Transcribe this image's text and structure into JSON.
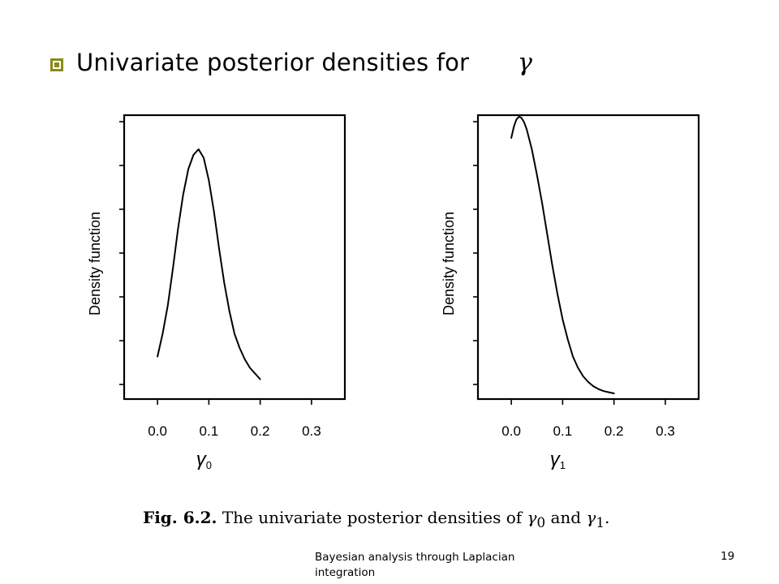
{
  "slide": {
    "title": "Univariate posterior densities for",
    "title_symbol": "γ",
    "caption_prefix": "Fig. 6.2.",
    "caption_text": "The univariate posterior densities of",
    "caption_sym0": "γ",
    "caption_sub0": "0",
    "caption_and": "and",
    "caption_sym1": "γ",
    "caption_sub1": "1",
    "caption_end": ".",
    "footer_text": "Bayesian analysis through Laplacian integration",
    "page_number": "19",
    "bullet_color": "#8a8a1a"
  },
  "chart_data": [
    {
      "type": "line",
      "ylabel": "Density function",
      "xlabel_symbol": "γ",
      "xlabel_subscript": "0",
      "x_ticks": [
        "0.0",
        "0.1",
        "0.2",
        "0.3"
      ],
      "xlim": [
        -0.065,
        0.365
      ],
      "y_ticks_count": 7,
      "y_tick_labels": [],
      "ylim": [
        0,
        1
      ],
      "series": [
        {
          "x": [
            0.0,
            0.01,
            0.02,
            0.03,
            0.04,
            0.05,
            0.06,
            0.07,
            0.08,
            0.09,
            0.1,
            0.11,
            0.12,
            0.13,
            0.14,
            0.15,
            0.16,
            0.17,
            0.18,
            0.19,
            0.2
          ],
          "values": [
            0.15,
            0.23,
            0.33,
            0.46,
            0.6,
            0.72,
            0.81,
            0.86,
            0.88,
            0.85,
            0.77,
            0.66,
            0.53,
            0.41,
            0.31,
            0.23,
            0.18,
            0.14,
            0.11,
            0.09,
            0.07
          ]
        }
      ]
    },
    {
      "type": "line",
      "ylabel": "Density function",
      "xlabel_symbol": "γ",
      "xlabel_subscript": "1",
      "x_ticks": [
        "0.0",
        "0.1",
        "0.2",
        "0.3"
      ],
      "xlim": [
        -0.065,
        0.365
      ],
      "y_ticks_count": 7,
      "y_tick_labels": [],
      "ylim": [
        0,
        1
      ],
      "series": [
        {
          "x": [
            0.0,
            0.005,
            0.01,
            0.015,
            0.02,
            0.025,
            0.03,
            0.04,
            0.05,
            0.06,
            0.07,
            0.08,
            0.09,
            0.1,
            0.11,
            0.12,
            0.13,
            0.14,
            0.15,
            0.16,
            0.17,
            0.18,
            0.19,
            0.2
          ],
          "values": [
            0.92,
            0.96,
            0.985,
            0.995,
            0.99,
            0.975,
            0.95,
            0.88,
            0.79,
            0.69,
            0.58,
            0.47,
            0.37,
            0.28,
            0.21,
            0.15,
            0.11,
            0.08,
            0.06,
            0.045,
            0.035,
            0.028,
            0.024,
            0.02
          ]
        }
      ]
    }
  ]
}
